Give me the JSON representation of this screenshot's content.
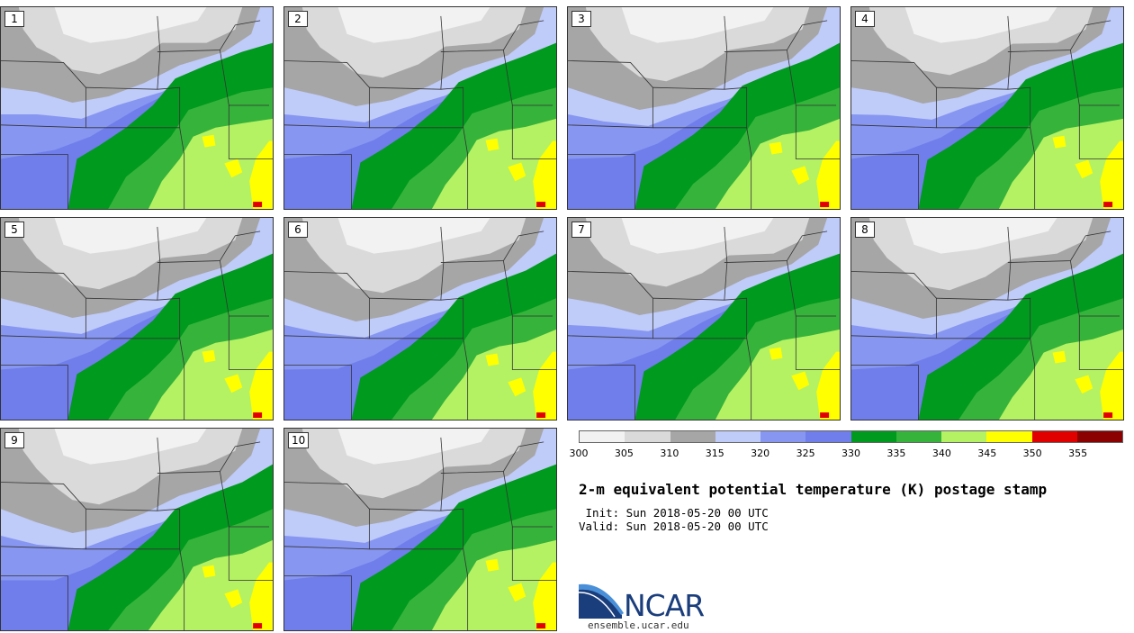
{
  "panels": [
    "1",
    "2",
    "3",
    "4",
    "5",
    "6",
    "7",
    "8",
    "9",
    "10"
  ],
  "legend": {
    "colors": [
      "#F2F2F2",
      "#DADADA",
      "#A6A6A6",
      "#BFCBF8",
      "#8796F0",
      "#6F7EEA",
      "#009A1E",
      "#36B33A",
      "#B4F264",
      "#FFFF00",
      "#E10000",
      "#8B0000"
    ],
    "ticks": [
      "300",
      "305",
      "310",
      "315",
      "320",
      "325",
      "330",
      "335",
      "340",
      "345",
      "350",
      "355"
    ]
  },
  "title": "2-m equivalent potential temperature (K) postage stamp",
  "init_text": " Init: Sun 2018-05-20 00 UTC",
  "valid_text": "Valid: Sun 2018-05-20 00 UTC",
  "logo": {
    "brand": "NCAR",
    "site": "ensemble.ucar.edu"
  }
}
